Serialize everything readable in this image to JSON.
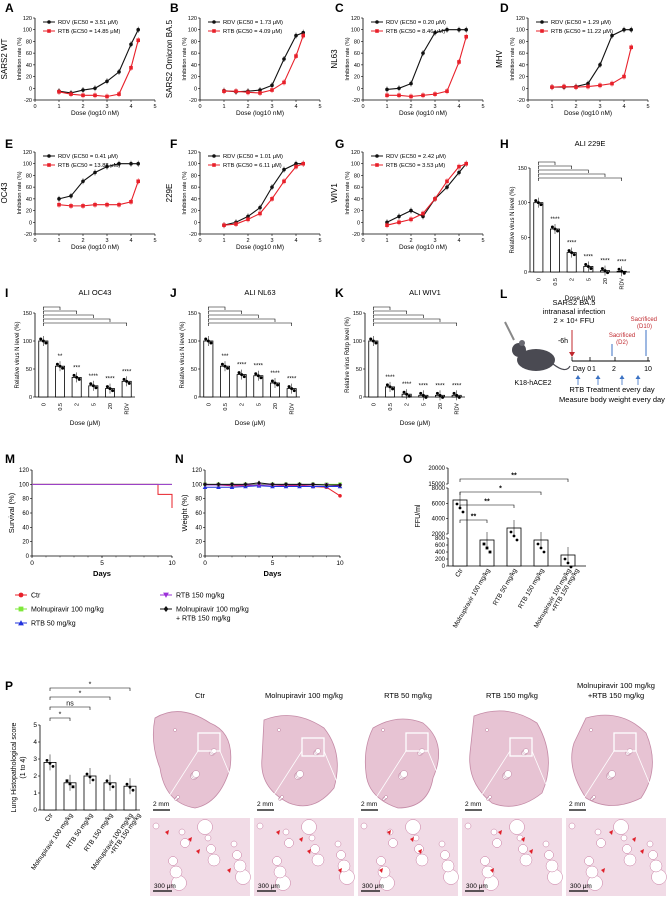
{
  "panels": {
    "A": {
      "letter": "A",
      "ylabel": "SARS2 WT",
      "xlabel": "Dose (log10 nM)",
      "ytitle": "Inhibition rate (%)"
    },
    "B": {
      "letter": "B",
      "ylabel": "SARS2 Omicron BA.5",
      "xlabel": "Dose (log10 nM)",
      "ytitle": "Inhibition rate (%)"
    },
    "C": {
      "letter": "C",
      "ylabel": "NL63",
      "xlabel": "Dose (log10 nM)",
      "ytitle": "Inhibition rate (%)"
    },
    "D": {
      "letter": "D",
      "ylabel": "MHV",
      "xlabel": "Dose (log10 nM)",
      "ytitle": "Inhibition rate (%)"
    },
    "E": {
      "letter": "E",
      "ylabel": "OC43",
      "xlabel": "Dose (log10 nM)",
      "ytitle": "Inhibition rate (%)"
    },
    "F": {
      "letter": "F",
      "ylabel": "229E",
      "xlabel": "Dose (log10 nM)",
      "ytitle": "Inhibition rate (%)"
    },
    "G": {
      "letter": "G",
      "ylabel": "WIV1",
      "xlabel": "Dose (log10 nM)",
      "ytitle": "Inhibition rate (%)"
    },
    "H": {
      "letter": "H",
      "title": "ALI 229E",
      "ytitle": "Relative virus N level (%)",
      "xlabel": "Dose (μM)"
    },
    "I": {
      "letter": "I",
      "title": "ALI OC43",
      "ytitle": "Relative virus N level (%)",
      "xlabel": "Dose (μM)"
    },
    "J": {
      "letter": "J",
      "title": "ALI NL63",
      "ytitle": "Relative virus N level (%)",
      "xlabel": "Dose (μM)"
    },
    "K": {
      "letter": "K",
      "title": "ALI WIV1",
      "ytitle": "Relative virus Rdrp level (%)",
      "xlabel": "Dose (μM)"
    },
    "L": {
      "letter": "L",
      "line1": "SARS2 BA.5",
      "line2": "intranasal infection",
      "line3": "2 × 10⁴ FFU",
      "sac1a": "Sacrificed",
      "sac1b": "(D2)",
      "sac2a": "Sacrificed",
      "sac2b": "(D10)",
      "neg": "-6h",
      "mouse": "K18-hACE2",
      "days": [
        "Day 0",
        "1",
        "2",
        "10"
      ],
      "caption1": "RTB Treatment every day",
      "caption2": "Measure body weight every day"
    },
    "M": {
      "letter": "M",
      "ytitle": "Survival (%)",
      "xlabel": "Days"
    },
    "N": {
      "letter": "N",
      "ytitle": "Weight (%)",
      "xlabel": "Days"
    },
    "O": {
      "letter": "O",
      "ytitle": "FFU/ml"
    },
    "P": {
      "letter": "P",
      "ytitle": "Lung Histopathological score",
      "ytitle2": "(1 to 4)",
      "images": [
        "Ctr",
        "Molnupiravir 100 mg/kg",
        "RTB 50 mg/kg",
        "RTB 150 mg/kg",
        "Molnupiravir 100 mg/kg\n+RTB 150 mg/kg"
      ],
      "scale_top": "2 mm",
      "scale_bottom": "300 μm"
    }
  },
  "legend": [
    {
      "label": "Ctr",
      "color": "#e8202a",
      "marker": "circle"
    },
    {
      "label": "Molnupiravir 100 mg/kg",
      "color": "#7ee83a",
      "marker": "square"
    },
    {
      "label": "RTB 50 mg/kg",
      "color": "#2233dd",
      "marker": "triangle"
    },
    {
      "label": "RTB 150 mg/kg",
      "color": "#9b30d9",
      "marker": "tridown"
    },
    {
      "label": "Molnupiravir 100 mg/kg\n+ RTB 150 mg/kg",
      "color": "#111111",
      "marker": "diamond"
    }
  ],
  "chart_data": [
    {
      "panel": "A",
      "type": "line",
      "xlim": [
        0,
        5
      ],
      "ylim": [
        -20,
        120
      ],
      "xticks": [
        0,
        1,
        2,
        3,
        4,
        5
      ],
      "yticks": [
        -20,
        0,
        20,
        40,
        60,
        80,
        100,
        120
      ],
      "series": [
        {
          "name": "RDV (EC50 = 3.51 μM)",
          "color": "#111111",
          "x": [
            1,
            1.5,
            2,
            2.5,
            3,
            3.5,
            4,
            4.3
          ],
          "y": [
            -5,
            -8,
            -3,
            0,
            12,
            28,
            75,
            100
          ]
        },
        {
          "name": "RTB (EC50 = 14.85 μM)",
          "color": "#e8202a",
          "x": [
            1,
            1.5,
            2,
            2.5,
            3,
            3.5,
            4,
            4.3
          ],
          "y": [
            -6,
            -10,
            -12,
            -12,
            -14,
            -10,
            35,
            82
          ]
        }
      ]
    },
    {
      "panel": "B",
      "type": "line",
      "xlim": [
        0,
        5
      ],
      "ylim": [
        -20,
        120
      ],
      "xticks": [
        0,
        1,
        2,
        3,
        4,
        5
      ],
      "yticks": [
        -20,
        0,
        20,
        40,
        60,
        80,
        100,
        120
      ],
      "series": [
        {
          "name": "RDV (EC50 = 1.73 μM)",
          "color": "#111111",
          "x": [
            1,
            1.5,
            2,
            2.5,
            3,
            3.5,
            4,
            4.3
          ],
          "y": [
            -4,
            -6,
            -5,
            -3,
            5,
            50,
            90,
            95
          ]
        },
        {
          "name": "RTB (EC50 = 4.09 μM)",
          "color": "#e8202a",
          "x": [
            1,
            1.5,
            2,
            2.5,
            3,
            3.5,
            4,
            4.3
          ],
          "y": [
            -5,
            -5,
            -7,
            -8,
            -3,
            10,
            55,
            90
          ]
        }
      ]
    },
    {
      "panel": "C",
      "type": "line",
      "xlim": [
        0,
        5
      ],
      "ylim": [
        -20,
        120
      ],
      "xticks": [
        0,
        1,
        2,
        3,
        4,
        5
      ],
      "yticks": [
        -20,
        0,
        20,
        40,
        60,
        80,
        100,
        120
      ],
      "series": [
        {
          "name": "RDV (EC50 = 0.20 μM)",
          "color": "#111111",
          "x": [
            1,
            1.5,
            2,
            2.5,
            3,
            3.5,
            4,
            4.3
          ],
          "y": [
            -2,
            0,
            8,
            60,
            95,
            100,
            100,
            100
          ]
        },
        {
          "name": "RTB (EC50 = 8.46 μM)",
          "color": "#e8202a",
          "x": [
            1,
            1.5,
            2,
            2.5,
            3,
            3.5,
            4,
            4.3
          ],
          "y": [
            -12,
            -12,
            -14,
            -12,
            -10,
            -5,
            45,
            88
          ]
        }
      ]
    },
    {
      "panel": "D",
      "type": "line",
      "xlim": [
        0,
        5
      ],
      "ylim": [
        -20,
        120
      ],
      "xticks": [
        0,
        1,
        2,
        3,
        4,
        5
      ],
      "yticks": [
        -20,
        0,
        20,
        40,
        60,
        80,
        100,
        120
      ],
      "series": [
        {
          "name": "RDV (EC50 = 1.29 μM)",
          "color": "#111111",
          "x": [
            1,
            1.5,
            2,
            2.5,
            3,
            3.5,
            4,
            4.3
          ],
          "y": [
            2,
            2,
            3,
            8,
            40,
            90,
            100,
            100
          ]
        },
        {
          "name": "RTB (EC50 = 11.22 μM)",
          "color": "#e8202a",
          "x": [
            1,
            1.5,
            2,
            2.5,
            3,
            3.5,
            4,
            4.3
          ],
          "y": [
            2,
            3,
            2,
            3,
            5,
            8,
            20,
            70
          ]
        }
      ]
    },
    {
      "panel": "E",
      "type": "line",
      "xlim": [
        0,
        5
      ],
      "ylim": [
        -20,
        120
      ],
      "xticks": [
        0,
        1,
        2,
        3,
        4,
        5
      ],
      "yticks": [
        -20,
        0,
        20,
        40,
        60,
        80,
        100,
        120
      ],
      "series": [
        {
          "name": "RDV (EC50 = 0.41 μM)",
          "color": "#111111",
          "x": [
            1,
            1.5,
            2,
            2.5,
            3,
            3.5,
            4,
            4.3
          ],
          "y": [
            40,
            45,
            70,
            85,
            95,
            100,
            100,
            100
          ]
        },
        {
          "name": "RTB (EC50 = 13.88 μM)",
          "color": "#e8202a",
          "x": [
            1,
            1.5,
            2,
            2.5,
            3,
            3.5,
            4,
            4.3
          ],
          "y": [
            30,
            28,
            28,
            30,
            30,
            30,
            35,
            70
          ]
        }
      ]
    },
    {
      "panel": "F",
      "type": "line",
      "xlim": [
        0,
        5
      ],
      "ylim": [
        -20,
        120
      ],
      "xticks": [
        0,
        1,
        2,
        3,
        4,
        5
      ],
      "yticks": [
        -20,
        0,
        20,
        40,
        60,
        80,
        100,
        120
      ],
      "series": [
        {
          "name": "RDV (EC50 = 1.01 μM)",
          "color": "#111111",
          "x": [
            1,
            1.5,
            2,
            2.5,
            3,
            3.5,
            4,
            4.3
          ],
          "y": [
            -5,
            0,
            10,
            25,
            60,
            90,
            100,
            100
          ]
        },
        {
          "name": "RTB (EC50 = 6.11 μM)",
          "color": "#e8202a",
          "x": [
            1,
            1.5,
            2,
            2.5,
            3,
            3.5,
            4,
            4.3
          ],
          "y": [
            -5,
            -3,
            5,
            15,
            40,
            70,
            95,
            100
          ]
        }
      ]
    },
    {
      "panel": "G",
      "type": "line",
      "xlim": [
        0,
        5
      ],
      "ylim": [
        -20,
        120
      ],
      "xticks": [
        0,
        1,
        2,
        3,
        4,
        5
      ],
      "yticks": [
        -20,
        0,
        20,
        40,
        60,
        80,
        100,
        120
      ],
      "series": [
        {
          "name": "RDV (EC50 = 2.42 μM)",
          "color": "#111111",
          "x": [
            1,
            1.5,
            2,
            2.5,
            3,
            3.5,
            4,
            4.3
          ],
          "y": [
            0,
            10,
            20,
            10,
            40,
            60,
            85,
            100
          ]
        },
        {
          "name": "RTB (EC50 = 3.53 μM)",
          "color": "#e8202a",
          "x": [
            1,
            1.5,
            2,
            2.5,
            3,
            3.5,
            4,
            4.3
          ],
          "y": [
            -5,
            0,
            5,
            15,
            40,
            70,
            95,
            100
          ]
        }
      ]
    },
    {
      "panel": "H",
      "type": "bar",
      "categories": [
        "0",
        "0.5",
        "2",
        "5",
        "20",
        "RDV"
      ],
      "ylim": [
        0,
        150
      ],
      "yticks": [
        0,
        50,
        100,
        150
      ],
      "values": [
        100,
        62,
        28,
        8,
        2,
        1
      ],
      "sig": [
        "",
        "****",
        "****",
        "****",
        "****",
        "****"
      ]
    },
    {
      "panel": "I",
      "type": "bar",
      "categories": [
        "0",
        "0.5",
        "2",
        "5",
        "20",
        "RDV"
      ],
      "ylim": [
        0,
        150
      ],
      "yticks": [
        0,
        50,
        100,
        150
      ],
      "values": [
        100,
        55,
        35,
        20,
        15,
        28
      ],
      "sig": [
        "",
        "**",
        "***",
        "****",
        "****",
        "****"
      ]
    },
    {
      "panel": "J",
      "type": "bar",
      "categories": [
        "0",
        "0.5",
        "2",
        "5",
        "20",
        "RDV"
      ],
      "ylim": [
        0,
        150
      ],
      "yticks": [
        0,
        50,
        100,
        150
      ],
      "values": [
        100,
        55,
        40,
        38,
        25,
        15
      ],
      "sig": [
        "",
        "***",
        "****",
        "****",
        "****",
        "****"
      ]
    },
    {
      "panel": "K",
      "type": "bar",
      "categories": [
        "0",
        "0.5",
        "2",
        "5",
        "20",
        "RDV"
      ],
      "ylim": [
        0,
        150
      ],
      "yticks": [
        0,
        50,
        100,
        150
      ],
      "values": [
        100,
        18,
        5,
        3,
        3,
        3
      ],
      "sig": [
        "",
        "****",
        "****",
        "****",
        "****",
        "****"
      ]
    },
    {
      "panel": "M",
      "type": "line",
      "xlim": [
        0,
        10
      ],
      "ylim": [
        0,
        120
      ],
      "xticks": [
        0,
        5,
        10
      ],
      "yticks": [
        0,
        20,
        40,
        60,
        80,
        100,
        120
      ],
      "series": [
        {
          "label": "Ctr",
          "color": "#e8202a",
          "x": [
            0,
            9,
            9,
            10,
            10
          ],
          "y": [
            100,
            100,
            86,
            86,
            67
          ]
        },
        {
          "label": "Molnupiravir 100 mg/kg",
          "color": "#7ee83a",
          "x": [
            0,
            10
          ],
          "y": [
            100,
            100
          ]
        },
        {
          "label": "RTB 150 mg/kg",
          "color": "#9b30d9",
          "x": [
            0,
            10
          ],
          "y": [
            100,
            100
          ]
        }
      ]
    },
    {
      "panel": "N",
      "type": "line",
      "xlim": [
        0,
        10
      ],
      "ylim": [
        0,
        120
      ],
      "xticks": [
        0,
        5,
        10
      ],
      "yticks": [
        0,
        20,
        40,
        60,
        80,
        100,
        120
      ],
      "series": [
        {
          "label": "Ctr",
          "color": "#e8202a",
          "x": [
            0,
            1,
            2,
            3,
            4,
            5,
            6,
            7,
            8,
            9,
            10
          ],
          "y": [
            100,
            99,
            98,
            98,
            99,
            99,
            98,
            98,
            97,
            96,
            84
          ]
        },
        {
          "label": "Molnupiravir 100 mg/kg",
          "color": "#7ee83a",
          "x": [
            0,
            1,
            2,
            3,
            4,
            5,
            6,
            7,
            8,
            9,
            10
          ],
          "y": [
            100,
            100,
            100,
            100,
            100,
            100,
            100,
            100,
            100,
            100,
            100
          ]
        },
        {
          "label": "RTB 50 mg/kg",
          "color": "#2233dd",
          "x": [
            0,
            1,
            2,
            3,
            4,
            5,
            6,
            7,
            8,
            9,
            10
          ],
          "y": [
            96,
            96,
            96,
            97,
            98,
            97,
            97,
            97,
            97,
            97,
            97
          ]
        },
        {
          "label": "RTB 150 mg/kg",
          "color": "#9b30d9",
          "x": [
            0,
            1,
            2,
            3,
            4,
            5,
            6,
            7,
            8,
            9,
            10
          ],
          "y": [
            99,
            99,
            99,
            99,
            99,
            99,
            99,
            99,
            99,
            99,
            98
          ]
        },
        {
          "label": "Molnupiravir 100 mg/kg + RTB 150 mg/kg",
          "color": "#111111",
          "x": [
            0,
            1,
            2,
            3,
            4,
            5,
            6,
            7,
            8,
            9,
            10
          ],
          "y": [
            100,
            100,
            100,
            100,
            102,
            100,
            100,
            100,
            100,
            99,
            99
          ]
        }
      ]
    },
    {
      "panel": "O",
      "type": "bar",
      "categories": [
        "Ctr",
        "Molnupiravir 100 mg/kg",
        "RTB 50 mg/kg",
        "RTB 150 mg/kg",
        "Molnupiravir 100 mg/kg +RTB 150 mg/kg"
      ],
      "yticks": [
        "0",
        "200",
        "400",
        "600",
        "800",
        "2000",
        "4000",
        "6000",
        "8000",
        "15000",
        "20000"
      ],
      "values": [
        5000,
        500,
        1500,
        700,
        250
      ],
      "sig": [
        "**",
        "**",
        "*",
        "**"
      ]
    },
    {
      "panel": "P",
      "type": "bar",
      "categories": [
        "Ctr",
        "Molnupiravir 100 mg/kg",
        "RTB 50 mg/kg",
        "RTB 150 mg/kg",
        "Molnupiravir 100 mg/kg +RTB 150 mg/kg"
      ],
      "ylim": [
        0,
        5
      ],
      "yticks": [
        0,
        1,
        2,
        3,
        4,
        5
      ],
      "values": [
        2.8,
        1.6,
        2.0,
        1.6,
        1.4
      ],
      "sig": [
        "*",
        "ns",
        "*",
        "*"
      ]
    }
  ]
}
